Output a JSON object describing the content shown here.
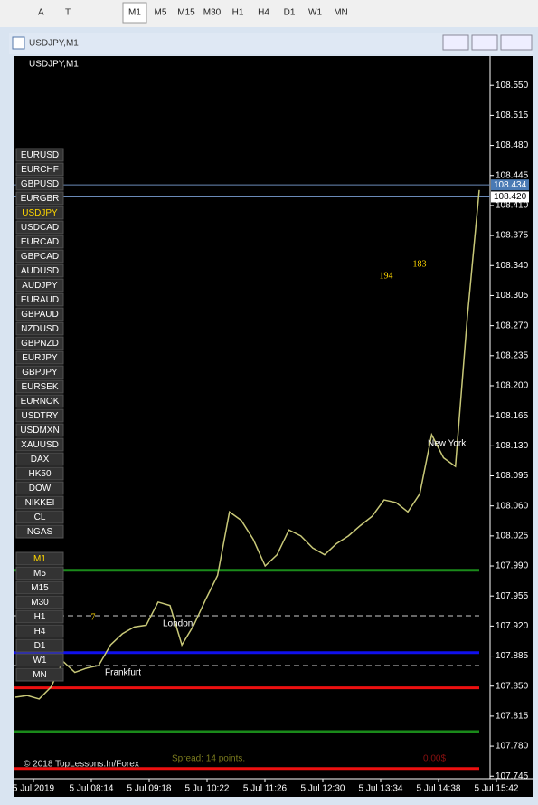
{
  "toolbar": {
    "icons": [
      "A",
      "T"
    ],
    "timeframes": [
      "M1",
      "M5",
      "M15",
      "M30",
      "H1",
      "H4",
      "D1",
      "W1",
      "MN"
    ]
  },
  "window": {
    "title": "USDJPY,M1"
  },
  "chart": {
    "type": "line",
    "label": "USDJPY,M1",
    "color": "#c8c878",
    "ylim": [
      107.721,
      108.584
    ],
    "yticks": [
      {
        "value": 107.745,
        "label": "107.745"
      },
      {
        "value": 107.78,
        "label": "107.780"
      },
      {
        "value": 107.815,
        "label": "107.815"
      },
      {
        "value": 107.85,
        "label": "107.850"
      },
      {
        "value": 107.885,
        "label": "107.885"
      },
      {
        "value": 107.92,
        "label": "107.920"
      },
      {
        "value": 107.955,
        "label": "107.955"
      },
      {
        "value": 107.99,
        "label": "107.990"
      },
      {
        "value": 108.025,
        "label": "108.025"
      },
      {
        "value": 108.06,
        "label": "108.060"
      },
      {
        "value": 108.095,
        "label": "108.095"
      },
      {
        "value": 108.13,
        "label": "108.130"
      },
      {
        "value": 108.165,
        "label": "108.165"
      },
      {
        "value": 108.2,
        "label": "108.200"
      },
      {
        "value": 108.235,
        "label": "108.235"
      },
      {
        "value": 108.27,
        "label": "108.270"
      },
      {
        "value": 108.305,
        "label": "108.305"
      },
      {
        "value": 108.34,
        "label": "108.340"
      },
      {
        "value": 108.375,
        "label": "108.375"
      },
      {
        "value": 108.41,
        "label": "108.410"
      },
      {
        "value": 108.445,
        "label": "108.445"
      },
      {
        "value": 108.48,
        "label": "108.480"
      },
      {
        "value": 108.515,
        "label": "108.515"
      },
      {
        "value": 108.55,
        "label": "108.550"
      }
    ],
    "x_labels": [
      "5 Jul 2019",
      "5 Jul 08:14",
      "5 Jul 09:18",
      "5 Jul 10:22",
      "5 Jul 11:26",
      "5 Jul 12:30",
      "5 Jul 13:34",
      "5 Jul 14:38",
      "5 Jul 15:42"
    ],
    "values": [
      107.837,
      107.839,
      107.835,
      107.849,
      107.879,
      107.866,
      107.871,
      107.874,
      107.898,
      107.911,
      107.919,
      107.921,
      107.948,
      107.944,
      107.898,
      107.921,
      107.951,
      107.979,
      108.053,
      108.043,
      108.021,
      107.99,
      108.003,
      108.032,
      108.025,
      108.011,
      108.003,
      108.016,
      108.025,
      108.037,
      108.048,
      108.067,
      108.064,
      108.053,
      108.074,
      108.143,
      108.116,
      108.106,
      108.28,
      108.428
    ],
    "levels": [
      {
        "value": 107.985,
        "color": "#1a8a1a",
        "style": "solid"
      },
      {
        "value": 107.889,
        "color": "#1010ee",
        "style": "solid"
      },
      {
        "value": 107.848,
        "color": "#ee1010",
        "style": "solid"
      },
      {
        "value": 107.932,
        "color": "#cccccc",
        "style": "dash"
      },
      {
        "value": 107.874,
        "color": "#cccccc",
        "style": "dash"
      },
      {
        "value": 107.797,
        "color": "#1a8a1a",
        "style": "solid"
      },
      {
        "value": 107.754,
        "color": "#ee1010",
        "style": "solid"
      }
    ],
    "price_tags": [
      {
        "value": 108.434,
        "label": "108.434",
        "color": "#4a7ab4"
      },
      {
        "value": 108.42,
        "label": "108.420",
        "color": "#ffffff"
      }
    ],
    "annotations": [
      "194",
      "183",
      "7",
      "London",
      "Frankfurt",
      "New York"
    ],
    "symbols": [
      "EURUSD",
      "EURCHF",
      "GBPUSD",
      "EURGBR",
      "USDJPY",
      "USDCAD",
      "EURCAD",
      "GBPCAD",
      "AUDUSD",
      "AUDJPY",
      "EURAUD",
      "GBPAUD",
      "NZDUSD",
      "GBPNZD",
      "EURJPY",
      "GBPJPY",
      "EURSEK",
      "EURNOK",
      "USDTRY",
      "USDMXN",
      "XAUUSD",
      "DAX",
      "HK50",
      "DOW",
      "NIKKEI",
      "CL",
      "NGAS"
    ],
    "active_symbol": 4,
    "timeframes": [
      "M1",
      "M5",
      "M15",
      "M30",
      "H1",
      "H4",
      "D1",
      "W1",
      "MN"
    ],
    "spread": "Spread: 14 points.",
    "profit": "0.00$",
    "copyright": "© 2018 TopLessons.In/Forex"
  }
}
